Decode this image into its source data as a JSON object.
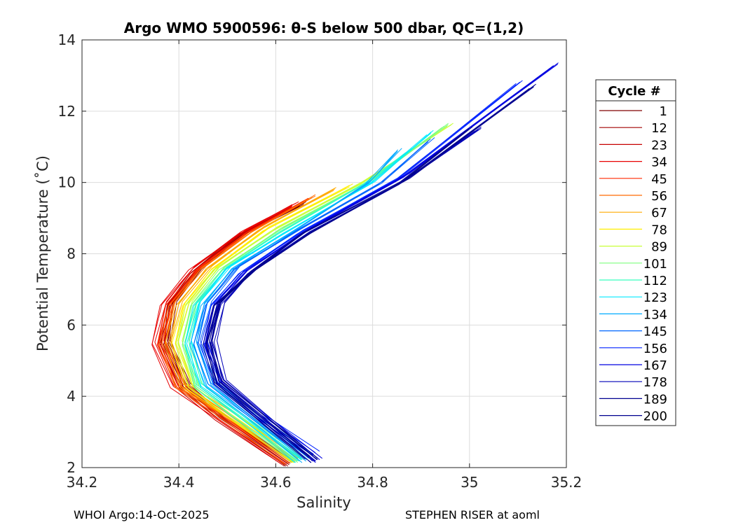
{
  "chart_data": {
    "type": "line",
    "title": "Argo WMO 5900596: θ-S below 500 dbar,  QC=(1,2)",
    "xlabel": "Salinity",
    "ylabel": "Potential Temperature (˚C)",
    "xlim": [
      34.2,
      35.2
    ],
    "ylim": [
      2,
      14
    ],
    "xticks": [
      34.2,
      34.4,
      34.6,
      34.8,
      35,
      35.2
    ],
    "xtick_labels": [
      "34.2",
      "34.4",
      "34.6",
      "34.8",
      "35",
      "35.2"
    ],
    "yticks": [
      2,
      4,
      6,
      8,
      10,
      12,
      14
    ],
    "ytick_labels": [
      "2",
      "4",
      "6",
      "8",
      "10",
      "12",
      "14"
    ],
    "grid": true,
    "legend": {
      "title": "Cycle #",
      "position": "right",
      "entries": [
        {
          "label": "1",
          "color": "#800000"
        },
        {
          "label": "12",
          "color": "#a30000"
        },
        {
          "label": "23",
          "color": "#c60000"
        },
        {
          "label": "34",
          "color": "#e80000"
        },
        {
          "label": "45",
          "color": "#ff2a00"
        },
        {
          "label": "56",
          "color": "#ff6a00"
        },
        {
          "label": "67",
          "color": "#ffaa00"
        },
        {
          "label": "78",
          "color": "#ffee00"
        },
        {
          "label": "89",
          "color": "#c8ff38"
        },
        {
          "label": "101",
          "color": "#7dff7d"
        },
        {
          "label": "112",
          "color": "#38ffbe"
        },
        {
          "label": "123",
          "color": "#00eaff"
        },
        {
          "label": "134",
          "color": "#00aaff"
        },
        {
          "label": "145",
          "color": "#0066ff"
        },
        {
          "label": "156",
          "color": "#0022ff"
        },
        {
          "label": "167",
          "color": "#0000e0"
        },
        {
          "label": "178",
          "color": "#0000b8"
        },
        {
          "label": "189",
          "color": "#000090"
        },
        {
          "label": "200",
          "color": "#00008f"
        }
      ]
    },
    "series": [
      {
        "name": "1",
        "color": "#800000",
        "x": [
          34.63,
          34.5,
          34.42,
          34.38,
          34.39,
          34.44,
          34.53,
          34.66
        ],
        "y": [
          2.1,
          3.4,
          4.3,
          5.5,
          6.6,
          7.5,
          8.5,
          9.4
        ]
      },
      {
        "name": "12",
        "color": "#a30000",
        "x": [
          34.63,
          34.49,
          34.41,
          34.37,
          34.38,
          34.43,
          34.52,
          34.64
        ],
        "y": [
          2.1,
          3.4,
          4.3,
          5.5,
          6.6,
          7.5,
          8.5,
          9.3
        ]
      },
      {
        "name": "23",
        "color": "#c60000",
        "x": [
          34.62,
          34.48,
          34.4,
          34.36,
          34.38,
          34.43,
          34.52,
          34.63
        ],
        "y": [
          2.1,
          3.4,
          4.3,
          5.5,
          6.6,
          7.5,
          8.5,
          9.3
        ]
      },
      {
        "name": "34",
        "color": "#e80000",
        "x": [
          34.62,
          34.48,
          34.39,
          34.35,
          34.37,
          34.43,
          34.53,
          34.64
        ],
        "y": [
          2.15,
          3.5,
          4.3,
          5.5,
          6.6,
          7.6,
          8.6,
          9.4
        ]
      },
      {
        "name": "45",
        "color": "#ff2a00",
        "x": [
          34.63,
          34.48,
          34.4,
          34.36,
          34.38,
          34.44,
          34.54,
          34.66
        ],
        "y": [
          2.15,
          3.5,
          4.3,
          5.5,
          6.6,
          7.6,
          8.6,
          9.5
        ]
      },
      {
        "name": "56",
        "color": "#ff6a00",
        "x": [
          34.63,
          34.49,
          34.4,
          34.37,
          34.39,
          34.45,
          34.55,
          34.68
        ],
        "y": [
          2.15,
          3.5,
          4.3,
          5.5,
          6.6,
          7.6,
          8.6,
          9.6
        ]
      },
      {
        "name": "67",
        "color": "#ffaa00",
        "x": [
          34.64,
          34.5,
          34.41,
          34.38,
          34.4,
          34.46,
          34.57,
          34.72
        ],
        "y": [
          2.2,
          3.5,
          4.3,
          5.5,
          6.6,
          7.6,
          8.7,
          9.8
        ]
      },
      {
        "name": "78",
        "color": "#ffee00",
        "x": [
          34.64,
          34.5,
          34.42,
          34.39,
          34.41,
          34.47,
          34.58,
          34.75
        ],
        "y": [
          2.2,
          3.5,
          4.3,
          5.5,
          6.6,
          7.6,
          8.7,
          9.9
        ]
      },
      {
        "name": "89",
        "color": "#c8ff38",
        "x": [
          34.64,
          34.51,
          34.43,
          34.4,
          34.42,
          34.48,
          34.6,
          34.78,
          34.96
        ],
        "y": [
          2.2,
          3.5,
          4.3,
          5.5,
          6.6,
          7.6,
          8.7,
          10.0,
          11.6
        ]
      },
      {
        "name": "101",
        "color": "#7dff7d",
        "x": [
          34.65,
          34.52,
          34.44,
          34.41,
          34.43,
          34.49,
          34.61,
          34.8,
          34.95
        ],
        "y": [
          2.2,
          3.5,
          4.3,
          5.5,
          6.6,
          7.6,
          8.7,
          10.1,
          11.6
        ]
      },
      {
        "name": "112",
        "color": "#38ffbe",
        "x": [
          34.65,
          34.52,
          34.44,
          34.42,
          34.44,
          34.5,
          34.61,
          34.79,
          34.88
        ],
        "y": [
          2.2,
          3.5,
          4.3,
          5.5,
          6.6,
          7.6,
          8.6,
          10.0,
          10.9
        ]
      },
      {
        "name": "123",
        "color": "#00eaff",
        "x": [
          34.65,
          34.53,
          34.45,
          34.42,
          34.44,
          34.5,
          34.62,
          34.8,
          34.92
        ],
        "y": [
          2.2,
          3.5,
          4.3,
          5.5,
          6.6,
          7.6,
          8.6,
          10.0,
          11.4
        ]
      },
      {
        "name": "134",
        "color": "#00aaff",
        "x": [
          34.66,
          34.54,
          34.46,
          34.43,
          34.45,
          34.51,
          34.63,
          34.79,
          34.85
        ],
        "y": [
          2.2,
          3.5,
          4.3,
          5.5,
          6.6,
          7.6,
          8.6,
          10.0,
          10.9
        ]
      },
      {
        "name": "145",
        "color": "#0066ff",
        "x": [
          34.67,
          34.55,
          34.47,
          34.44,
          34.46,
          34.52,
          34.64,
          34.82,
          34.92
        ],
        "y": [
          2.3,
          3.5,
          4.4,
          5.5,
          6.6,
          7.6,
          8.6,
          10.0,
          11.2
        ]
      },
      {
        "name": "156",
        "color": "#0022ff",
        "x": [
          34.68,
          34.56,
          34.48,
          34.45,
          34.47,
          34.53,
          34.65,
          34.85,
          35.1
        ],
        "y": [
          2.4,
          3.5,
          4.4,
          5.5,
          6.6,
          7.5,
          8.6,
          10.1,
          12.8
        ]
      },
      {
        "name": "167",
        "color": "#0000e0",
        "x": [
          34.69,
          34.57,
          34.49,
          34.46,
          34.48,
          34.54,
          34.66,
          34.87,
          35.18
        ],
        "y": [
          2.2,
          3.5,
          4.4,
          5.5,
          6.6,
          7.5,
          8.6,
          10.2,
          13.3
        ]
      },
      {
        "name": "178",
        "color": "#0000b8",
        "x": [
          34.68,
          34.57,
          34.49,
          34.47,
          34.49,
          34.55,
          34.67,
          34.86,
          35.02
        ],
        "y": [
          2.2,
          3.5,
          4.4,
          5.5,
          6.6,
          7.5,
          8.6,
          10.0,
          11.5
        ]
      },
      {
        "name": "189",
        "color": "#000090",
        "x": [
          34.68,
          34.56,
          34.48,
          34.46,
          34.48,
          34.55,
          34.67,
          34.87,
          35.13
        ],
        "y": [
          2.2,
          3.5,
          4.4,
          5.5,
          6.6,
          7.5,
          8.6,
          10.1,
          12.7
        ]
      },
      {
        "name": "200",
        "color": "#00008f",
        "x": [
          34.67,
          34.56,
          34.48,
          34.46,
          34.48,
          34.55,
          34.66,
          34.86,
          35.0
        ],
        "y": [
          2.3,
          3.5,
          4.4,
          5.5,
          6.6,
          7.5,
          8.6,
          10.0,
          11.5
        ]
      }
    ]
  },
  "footer": {
    "left": "WHOI Argo:14-Oct-2025",
    "right": "STEPHEN RISER at aoml"
  }
}
